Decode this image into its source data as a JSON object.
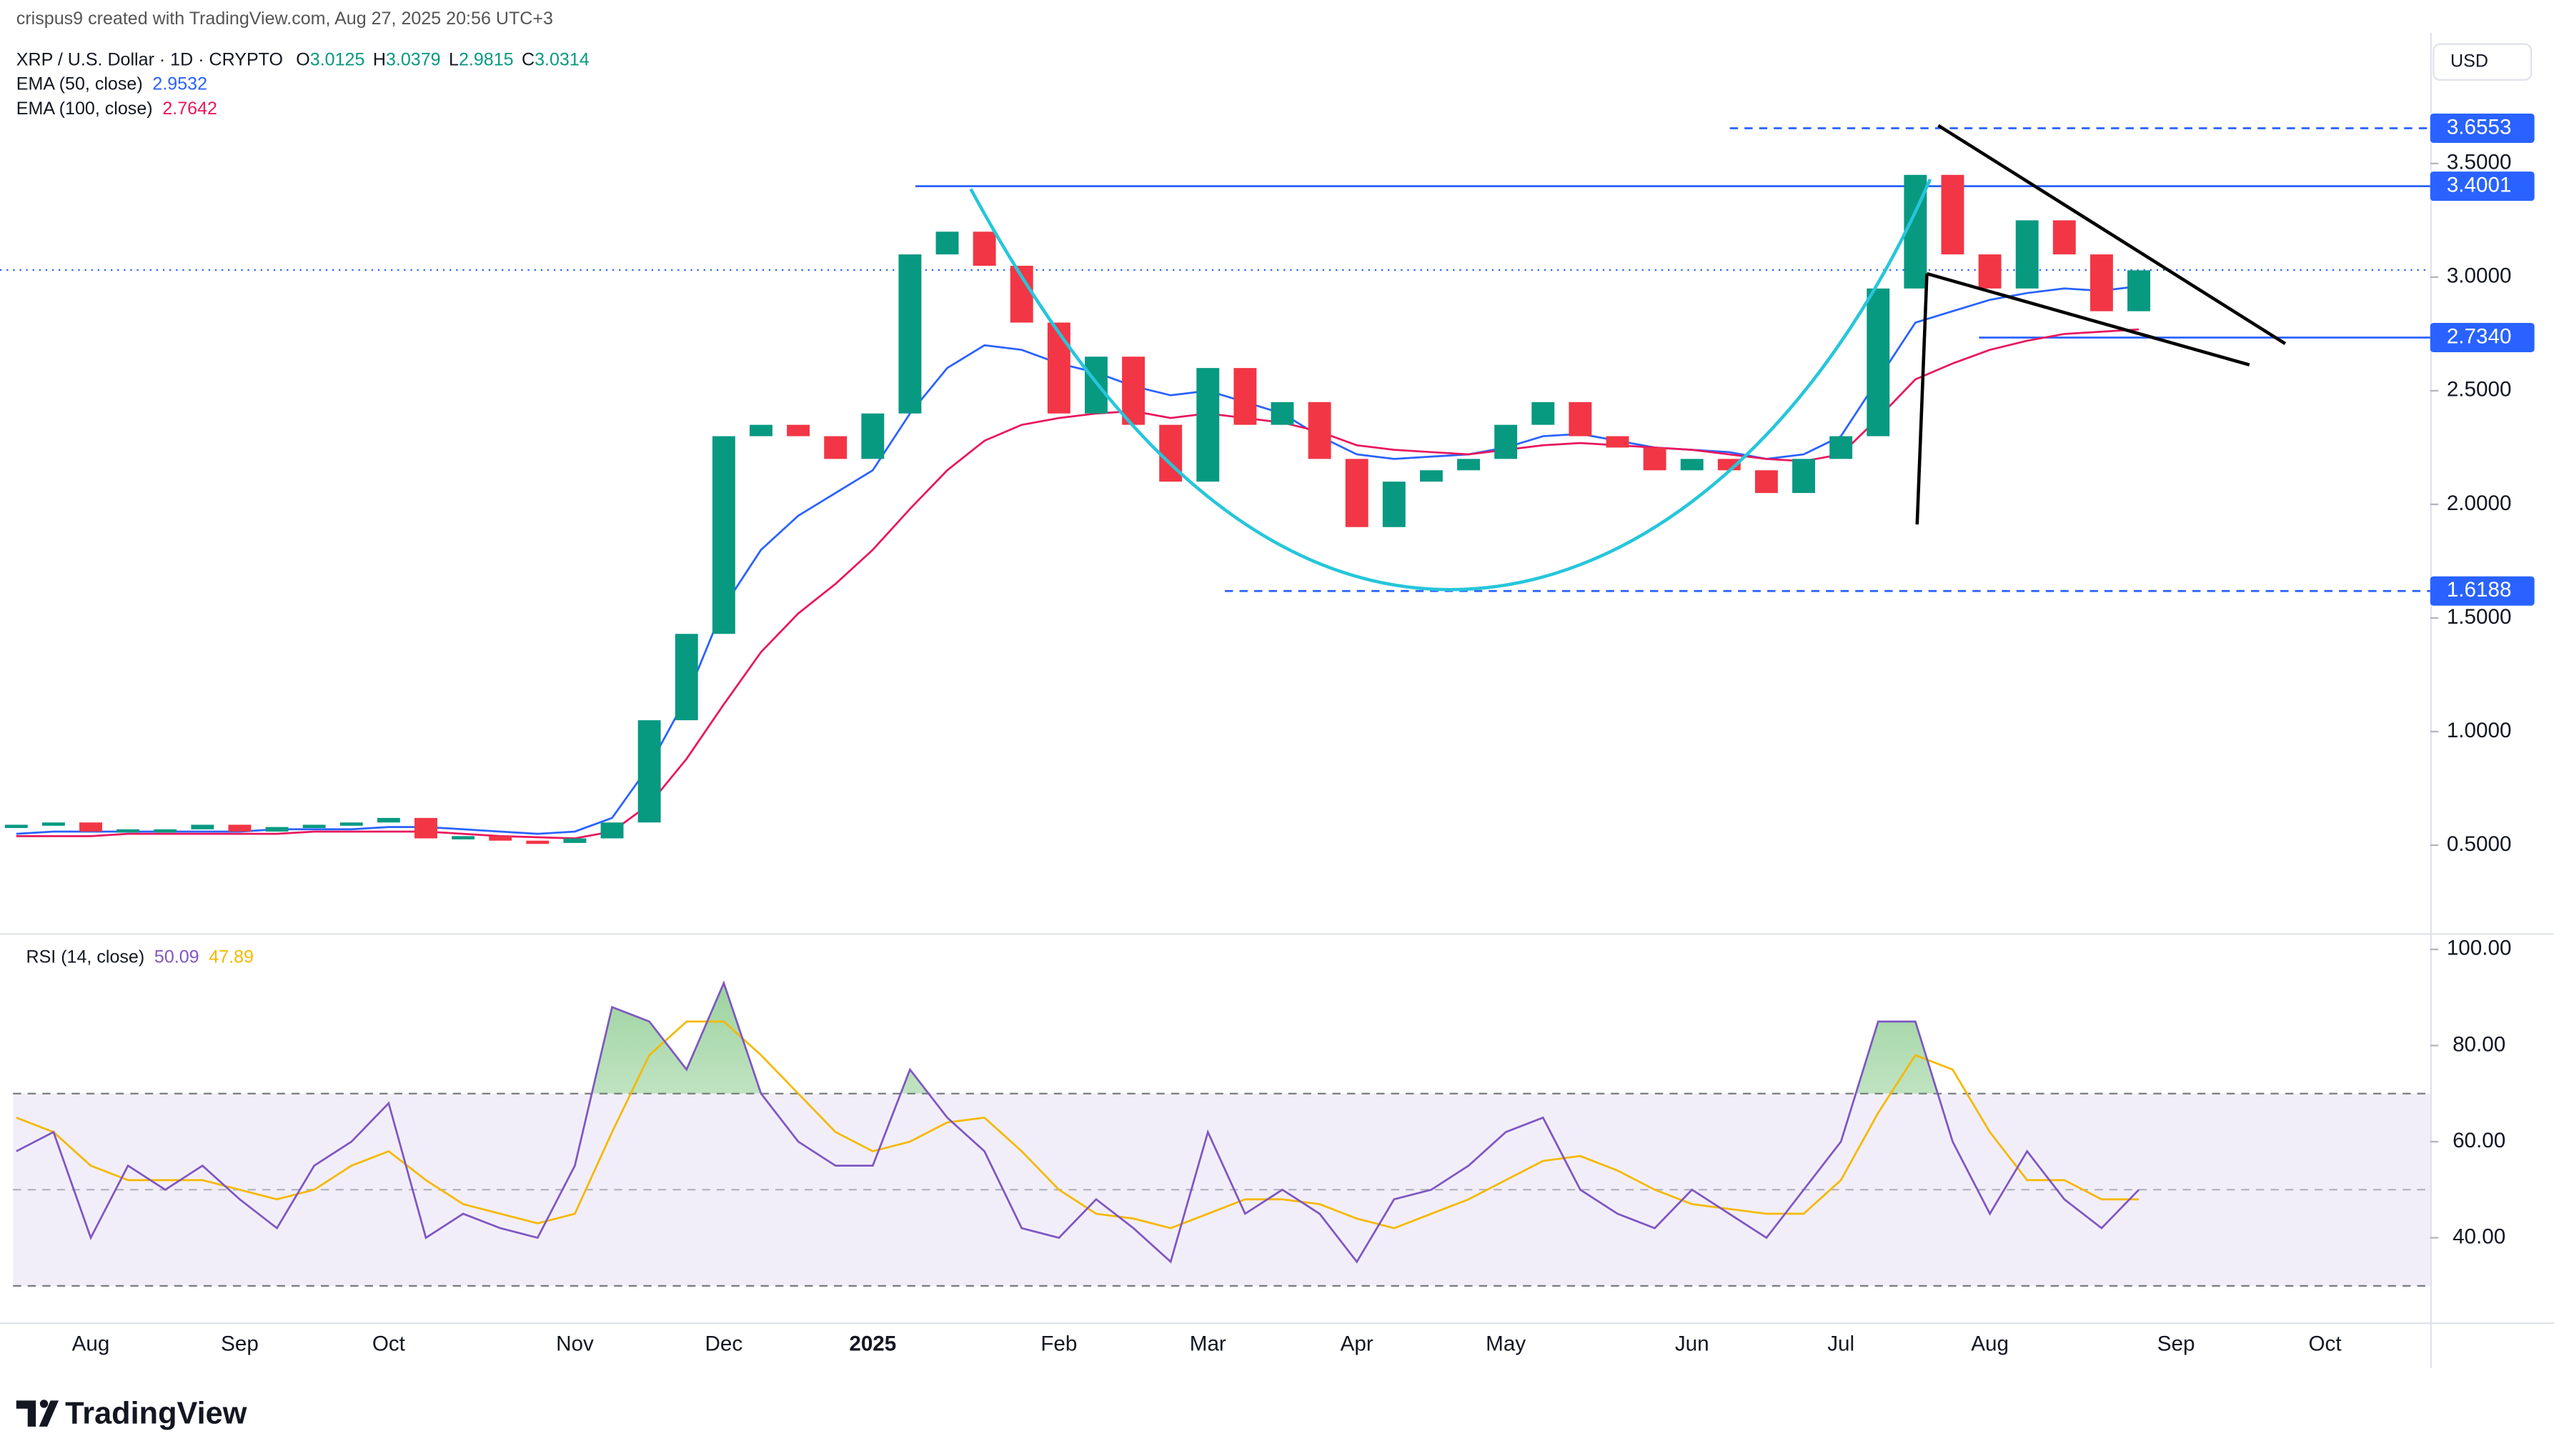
{
  "header": {
    "credit": "crispus9 created with TradingView.com, Aug 27, 2025 20:56 UTC+3",
    "currency": "USD",
    "brand": "TradingView"
  },
  "chart_data": [
    {
      "type": "candlestick",
      "categories": [
        null,
        null,
        "Aug",
        null,
        null,
        null,
        "Sep",
        null,
        null,
        null,
        "Oct",
        null,
        null,
        null,
        null,
        "Nov",
        null,
        null,
        null,
        "Dec",
        null,
        null,
        null,
        "2025",
        null,
        null,
        null,
        null,
        "Feb",
        null,
        null,
        null,
        "Mar",
        null,
        null,
        null,
        "Apr",
        null,
        null,
        null,
        "May",
        null,
        null,
        null,
        null,
        "Jun",
        null,
        null,
        null,
        "Jul",
        null,
        null,
        null,
        "Aug",
        null,
        null,
        null,
        null,
        "Sep",
        null,
        null,
        null,
        "Oct",
        null,
        null,
        null
      ],
      "series": [
        {
          "name": "XRP / U.S. Dollar · 1D · CRYPTO",
          "up_color": "#089981",
          "down_color": "#f23645",
          "values": [
            0.59,
            0.6,
            0.56,
            0.57,
            0.57,
            0.59,
            0.56,
            0.58,
            0.59,
            0.6,
            0.62,
            0.53,
            0.54,
            0.52,
            0.51,
            0.53,
            0.6,
            1.05,
            1.43,
            2.3,
            2.35,
            2.3,
            2.2,
            2.4,
            3.1,
            3.2,
            3.05,
            2.8,
            2.4,
            2.65,
            2.35,
            2.1,
            2.6,
            2.35,
            2.45,
            2.2,
            1.9,
            2.1,
            2.15,
            2.2,
            2.35,
            2.45,
            2.3,
            2.25,
            2.15,
            2.2,
            2.15,
            2.05,
            2.2,
            2.3,
            2.95,
            3.45,
            3.1,
            2.95,
            3.25,
            3.1,
            2.85,
            3.03,
            null,
            null,
            null,
            null,
            null,
            null,
            null,
            null
          ]
        },
        {
          "name": "EMA (50, close)",
          "color": "#2962ff",
          "legend_value": 2.9532,
          "values": [
            0.55,
            0.56,
            0.56,
            0.56,
            0.56,
            0.56,
            0.56,
            0.57,
            0.57,
            0.57,
            0.58,
            0.58,
            0.57,
            0.56,
            0.55,
            0.56,
            0.62,
            0.85,
            1.15,
            1.55,
            1.8,
            1.95,
            2.05,
            2.15,
            2.4,
            2.6,
            2.7,
            2.68,
            2.62,
            2.58,
            2.52,
            2.48,
            2.5,
            2.45,
            2.4,
            2.3,
            2.22,
            2.2,
            2.21,
            2.22,
            2.25,
            2.3,
            2.31,
            2.28,
            2.25,
            2.24,
            2.23,
            2.2,
            2.22,
            2.3,
            2.55,
            2.8,
            2.85,
            2.9,
            2.93,
            2.95,
            2.94,
            2.96,
            null,
            null,
            null,
            null,
            null,
            null,
            null,
            null
          ]
        },
        {
          "name": "EMA (100, close)",
          "color": "#e8175d",
          "legend_value": 2.7642,
          "values": [
            0.54,
            0.54,
            0.54,
            0.55,
            0.55,
            0.55,
            0.55,
            0.55,
            0.56,
            0.56,
            0.56,
            0.56,
            0.55,
            0.54,
            0.535,
            0.53,
            0.56,
            0.68,
            0.88,
            1.12,
            1.35,
            1.52,
            1.65,
            1.8,
            1.98,
            2.15,
            2.28,
            2.35,
            2.38,
            2.4,
            2.41,
            2.38,
            2.4,
            2.38,
            2.36,
            2.32,
            2.26,
            2.24,
            2.23,
            2.22,
            2.24,
            2.26,
            2.27,
            2.26,
            2.25,
            2.24,
            2.22,
            2.2,
            2.19,
            2.22,
            2.38,
            2.55,
            2.62,
            2.68,
            2.72,
            2.75,
            2.76,
            2.77,
            null,
            null,
            null,
            null,
            null,
            null,
            null,
            null
          ]
        }
      ],
      "ohlc": {
        "labels": [
          "O",
          "H",
          "L",
          "C"
        ],
        "values": [
          3.0125,
          3.0379,
          2.9815,
          3.0314
        ],
        "color": "#089981",
        "line_color": "#2962ff"
      },
      "ylim": [
        0.12,
        4.04
      ],
      "yticks": [
        {
          "value": 0.5,
          "label": "0.5000"
        },
        {
          "value": 1,
          "label": "1.0000"
        },
        {
          "value": 1.5,
          "label": "1.5000"
        },
        {
          "value": 2,
          "label": "2.0000"
        },
        {
          "value": 2.5,
          "label": "2.5000"
        },
        {
          "value": 3,
          "label": "3.0000"
        },
        {
          "value": 3.5,
          "label": "3.5000"
        }
      ],
      "levels": [
        {
          "value": 3.6553,
          "style": "dashed"
        },
        {
          "value": 3.4001,
          "style": "solid"
        },
        {
          "value": 2.734,
          "label": "2.7340",
          "style": "solid"
        },
        {
          "value": 1.6188,
          "style": "dashed"
        }
      ],
      "level_color": "#2962ff"
    },
    {
      "type": "line",
      "title": "RSI (14, close)",
      "series": [
        {
          "color": "#7e57c2",
          "legend_value": 50.09,
          "values": [
            58,
            62,
            40,
            55,
            50,
            55,
            48,
            42,
            55,
            60,
            68,
            40,
            45,
            42,
            40,
            55,
            88,
            85,
            75,
            93,
            70,
            60,
            55,
            55,
            75,
            65,
            58,
            42,
            40,
            48,
            42,
            35,
            62,
            45,
            50,
            45,
            35,
            48,
            50,
            55,
            62,
            65,
            50,
            45,
            42,
            50,
            45,
            40,
            50,
            60,
            85,
            85,
            60,
            45,
            58,
            48,
            42,
            50,
            null,
            null,
            null,
            null,
            null,
            null,
            null,
            null
          ]
        },
        {
          "color": "#f5b800",
          "legend_value": 47.89,
          "values": [
            65,
            62,
            55,
            52,
            52,
            52,
            50,
            48,
            50,
            55,
            58,
            52,
            47,
            45,
            43,
            45,
            62,
            78,
            85,
            85,
            78,
            70,
            62,
            58,
            60,
            64,
            65,
            58,
            50,
            45,
            44,
            42,
            45,
            48,
            48,
            47,
            44,
            42,
            45,
            48,
            52,
            56,
            57,
            54,
            50,
            47,
            46,
            45,
            45,
            52,
            66,
            78,
            75,
            62,
            52,
            52,
            48,
            48,
            null,
            null,
            null,
            null,
            null,
            null,
            null,
            null
          ]
        }
      ],
      "ylim": [
        22.4,
        102.7
      ],
      "yticks": [
        {
          "value": 40,
          "label": "40.00"
        },
        {
          "value": 60,
          "label": "60.00"
        },
        {
          "value": 80,
          "label": "80.00"
        },
        {
          "value": 100,
          "label": "100.00"
        }
      ],
      "band": [
        30,
        70
      ],
      "midline": 50,
      "band_color": "#7e57c2",
      "overbought_fill": "#4caf50"
    }
  ]
}
